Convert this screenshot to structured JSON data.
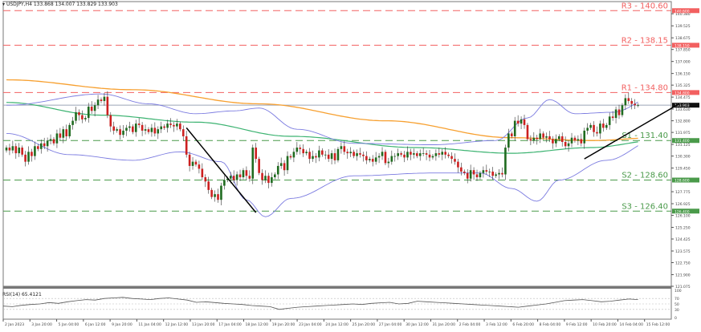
{
  "header": {
    "symbol": "USDJPY,H4",
    "ohlc": "133.868 134.007 133.829 133.903",
    "arrow_icon": "triangle-down-icon"
  },
  "colors": {
    "background": "#ffffff",
    "resistance": "#f26060",
    "support": "#4a9a4a",
    "ma_orange": "#f7a030",
    "ma_green": "#3cb371",
    "bollinger": "#7b7be0",
    "bull_candle": "#1f6b1f",
    "bear_candle": "#cc2020",
    "trendline": "#000000",
    "current_price_line": "#9aa4b8",
    "axis": "#555555",
    "rsi_line": "#555555"
  },
  "rsi": {
    "label": "RSI(14) 65.4121",
    "scale": [
      "100",
      "70",
      "50",
      "30",
      "0"
    ]
  },
  "chart_data": {
    "type": "candlestick",
    "title": "USDJPY, H4",
    "xlabel": "",
    "ylabel": "",
    "ylim": [
      121.075,
      140.9
    ],
    "grid": false,
    "y_ticks": [
      "140.380",
      "139.525",
      "138.675",
      "137.850",
      "137.000",
      "136.150",
      "135.325",
      "134.475",
      "133.630",
      "132.800",
      "131.975",
      "131.125",
      "130.300",
      "129.450",
      "127.775",
      "126.925",
      "126.100",
      "125.250",
      "124.425",
      "123.575",
      "122.750",
      "121.900",
      "121.075"
    ],
    "x_ticks": [
      "2 Jan 2023",
      "3 Jan 20:00",
      "5 Jan 04:00",
      "6 Jan 12:00",
      "9 Jan 20:00",
      "11 Jan 04:00",
      "12 Jan 12:00",
      "13 Jan 20:00",
      "17 Jan 04:00",
      "18 Jan 12:00",
      "19 Jan 20:00",
      "23 Jan 04:00",
      "24 Jan 12:00",
      "25 Jan 20:00",
      "27 Jan 04:00",
      "30 Jan 12:00",
      "31 Jan 20:00",
      "2 Feb 04:00",
      "3 Feb 12:00",
      "6 Feb 20:00",
      "8 Feb 04:00",
      "9 Feb 12:00",
      "10 Feb 20:00",
      "14 Feb 04:00",
      "15 Feb 12:00"
    ],
    "levels": [
      {
        "name": "R3",
        "value": 140.6,
        "label": "R3 - 140.60",
        "kind": "resistance"
      },
      {
        "name": "R2",
        "value": 138.15,
        "label": "R2 - 138.15",
        "kind": "resistance"
      },
      {
        "name": "R1",
        "value": 134.8,
        "label": "R1 - 134.80",
        "kind": "resistance"
      },
      {
        "name": "S1",
        "value": 131.4,
        "label": "S1 - 131.40",
        "kind": "support"
      },
      {
        "name": "S2",
        "value": 128.6,
        "label": "S2 - 128.60",
        "kind": "support"
      },
      {
        "name": "S3",
        "value": 126.4,
        "label": "S3 - 126.40",
        "kind": "support"
      }
    ],
    "current_price": 133.903,
    "current_price_label": "133.903",
    "closes": [
      130.9,
      130.7,
      131.0,
      130.5,
      130.9,
      130.4,
      129.9,
      130.6,
      130.3,
      131.0,
      130.8,
      131.2,
      131.0,
      131.4,
      131.5,
      131.2,
      131.9,
      131.6,
      132.2,
      131.7,
      132.5,
      132.8,
      133.4,
      133.2,
      132.9,
      133.0,
      133.8,
      133.5,
      133.9,
      134.3,
      134.2,
      134.5,
      133.2,
      132.4,
      132.1,
      132.2,
      131.8,
      132.1,
      132.3,
      132.4,
      132.0,
      132.6,
      132.5,
      132.1,
      132.2,
      132.0,
      132.3,
      131.9,
      132.2,
      132.4,
      132.3,
      132.6,
      132.5,
      132.4,
      132.6,
      132.2,
      131.7,
      130.4,
      129.6,
      129.9,
      129.7,
      129.4,
      128.8,
      128.5,
      127.9,
      127.4,
      127.6,
      127.2,
      128.2,
      128.6,
      128.7,
      128.9,
      128.6,
      129.0,
      128.8,
      129.3,
      128.9,
      128.7,
      130.9,
      130.1,
      129.1,
      128.6,
      128.9,
      128.4,
      128.8,
      129.0,
      129.6,
      129.8,
      129.3,
      130.3,
      130.2,
      130.6,
      130.9,
      130.8,
      130.5,
      130.6,
      130.1,
      130.3,
      130.2,
      130.7,
      130.4,
      130.4,
      130.1,
      130.5,
      130.0,
      130.8,
      131.0,
      130.6,
      130.5,
      130.6,
      130.3,
      130.5,
      130.4,
      130.3,
      130.0,
      130.1,
      129.9,
      130.2,
      130.3,
      130.6,
      129.8,
      129.9,
      130.3,
      130.3,
      130.5,
      130.4,
      130.2,
      130.6,
      130.4,
      130.5,
      130.3,
      130.5,
      130.5,
      130.4,
      130.2,
      130.3,
      130.5,
      130.4,
      130.6,
      130.4,
      130.3,
      130.1,
      129.9,
      129.5,
      129.2,
      129.1,
      128.7,
      129.3,
      129.0,
      128.8,
      129.1,
      129.3,
      129.2,
      129.2,
      128.9,
      129.0,
      129.1,
      129.0,
      130.9,
      131.9,
      131.7,
      132.8,
      132.6,
      132.9,
      132.5,
      131.5,
      131.4,
      131.6,
      131.5,
      131.9,
      131.6,
      131.7,
      131.5,
      131.2,
      131.5,
      131.7,
      131.3,
      131.0,
      131.2,
      131.6,
      131.4,
      131.5,
      131.2,
      132.1,
      132.3,
      132.5,
      132.0,
      131.9,
      132.6,
      132.3,
      132.5,
      133.1,
      133.0,
      133.6,
      133.2,
      133.9,
      134.4,
      134.2,
      134.0,
      133.9,
      133.9
    ],
    "bollinger_upper_anchors": [
      [
        0,
        133.9
      ],
      [
        30,
        134.7
      ],
      [
        45,
        134.0
      ],
      [
        60,
        133.3
      ],
      [
        72,
        133.5
      ],
      [
        80,
        133.7
      ],
      [
        92,
        132.2
      ],
      [
        110,
        131.2
      ],
      [
        135,
        131.1
      ],
      [
        155,
        131.4
      ],
      [
        165,
        133.0
      ],
      [
        172,
        134.3
      ],
      [
        180,
        133.3
      ],
      [
        192,
        133.4
      ],
      [
        206,
        134.6
      ]
    ],
    "bollinger_lower_anchors": [
      [
        0,
        131.9
      ],
      [
        20,
        130.4
      ],
      [
        40,
        130.0
      ],
      [
        55,
        130.6
      ],
      [
        68,
        129.9
      ],
      [
        76,
        127.2
      ],
      [
        82,
        126.0
      ],
      [
        90,
        127.3
      ],
      [
        110,
        128.9
      ],
      [
        135,
        129.1
      ],
      [
        150,
        129.1
      ],
      [
        160,
        128.0
      ],
      [
        168,
        127.1
      ],
      [
        175,
        128.6
      ],
      [
        190,
        130.0
      ],
      [
        206,
        131.5
      ]
    ],
    "ma_orange_anchors": [
      [
        0,
        135.7
      ],
      [
        40,
        135.0
      ],
      [
        80,
        134.0
      ],
      [
        120,
        132.8
      ],
      [
        160,
        131.6
      ],
      [
        185,
        131.4
      ],
      [
        206,
        131.6
      ]
    ],
    "ma_green_anchors": [
      [
        0,
        134.1
      ],
      [
        30,
        133.2
      ],
      [
        60,
        132.7
      ],
      [
        90,
        131.7
      ],
      [
        130,
        130.9
      ],
      [
        160,
        130.5
      ],
      [
        185,
        130.9
      ],
      [
        206,
        131.4
      ]
    ],
    "trendlines": [
      {
        "from": [
          57,
          132.3
        ],
        "to": [
          79,
          126.3
        ]
      },
      {
        "from": [
          183,
          130.1
        ],
        "to": [
          213,
          134.0
        ]
      }
    ],
    "rsi_values": [
      42,
      40,
      45,
      48,
      50,
      55,
      52,
      58,
      62,
      66,
      64,
      70,
      72,
      74,
      70,
      68,
      66,
      70,
      72,
      68,
      64,
      56,
      58,
      55,
      52,
      50,
      48,
      44,
      42,
      40,
      30,
      34,
      38,
      40,
      42,
      44,
      46,
      48,
      50,
      48,
      52,
      54,
      56,
      50,
      52,
      60,
      58,
      56,
      54,
      52,
      50,
      48,
      46,
      44,
      42,
      40,
      38,
      42,
      46,
      50,
      56,
      62,
      64,
      66,
      62,
      58,
      60,
      64,
      68,
      66
    ]
  }
}
